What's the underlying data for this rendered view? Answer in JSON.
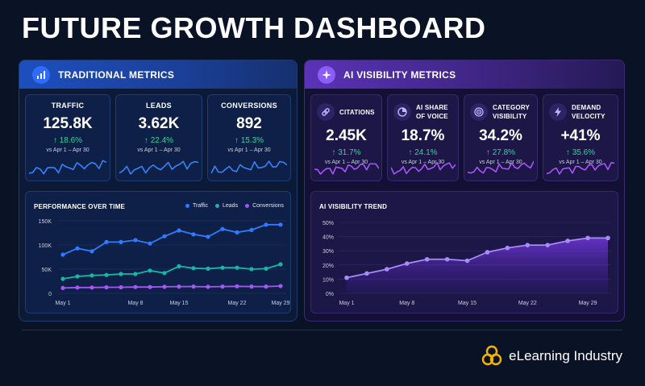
{
  "header": {
    "title": "FUTURE GROWTH DASHBOARD"
  },
  "traditional": {
    "title": "TRADITIONAL METRICS",
    "icon": "bar-chart-icon",
    "cards": [
      {
        "label": "TRAFFIC",
        "value": "125.8K",
        "delta": "↑ 18.6%",
        "period": "vs Apr 1 – Apr 30"
      },
      {
        "label": "LEADS",
        "value": "3.62K",
        "delta": "↑ 22.4%",
        "period": "vs Apr 1 – Apr 30"
      },
      {
        "label": "CONVERSIONS",
        "value": "892",
        "delta": "↑ 15.3%",
        "period": "vs Apr 1 – Apr 30"
      }
    ],
    "chart": {
      "title": "PERFORMANCE OVER TIME",
      "legend": [
        "Traffic",
        "Leads",
        "Conversions"
      ]
    }
  },
  "ai": {
    "title": "AI VISIBILITY METRICS",
    "icon": "sparkle-icon",
    "cards": [
      {
        "label_line1": "CITATIONS",
        "label_line2": "",
        "value": "2.45K",
        "delta": "↑ 31.7%",
        "period": "vs Apr 1 – Apr 30",
        "icon": "link-icon"
      },
      {
        "label_line1": "AI SHARE",
        "label_line2": "OF VOICE",
        "value": "18.7%",
        "delta": "↑ 24.1%",
        "period": "vs Apr 1 – Apr 30",
        "icon": "pie-icon"
      },
      {
        "label_line1": "CATEGORY",
        "label_line2": "VISIBILITY",
        "value": "34.2%",
        "delta": "↑ 27.8%",
        "period": "vs Apr 1 – Apr 30",
        "icon": "target-icon"
      },
      {
        "label_line1": "DEMAND",
        "label_line2": "VELOCITY",
        "value": "+41%",
        "delta": "↑ 35.6%",
        "period": "vs Apr 1 – Apr 30",
        "icon": "bolt-icon"
      }
    ],
    "chart": {
      "title": "AI VISIBILITY TREND"
    }
  },
  "brand": {
    "name": "eLearning Industry",
    "icon": "brand-logo-icon"
  },
  "colors": {
    "traffic": "#2f7bff",
    "leads": "#14b8a6",
    "conversions": "#a855f7",
    "ai_line": "#a78bfa",
    "positive": "#34d399",
    "spark_trad": "#3b82f6",
    "spark_ai": "#a855f7"
  },
  "chart_data": [
    {
      "type": "line",
      "x": [
        "May 1",
        "",
        "",
        "",
        "",
        "May 8",
        "",
        "",
        "May 15",
        "",
        "",
        "",
        "May 22",
        "",
        "",
        "May 29"
      ],
      "xticks": [
        "May 1",
        "May 8",
        "May 15",
        "May 22",
        "May 29"
      ],
      "yticks": [
        "0",
        "50K",
        "100K",
        "150K"
      ],
      "ylim": [
        0,
        150000
      ],
      "series": [
        {
          "name": "Traffic",
          "values": [
            80000,
            93000,
            87000,
            106000,
            106000,
            110000,
            103000,
            118000,
            130000,
            122000,
            117000,
            133000,
            126000,
            131000,
            142000,
            142000
          ]
        },
        {
          "name": "Leads",
          "values": [
            30000,
            35000,
            37000,
            38000,
            40000,
            40000,
            47000,
            42000,
            56000,
            52000,
            51000,
            53000,
            53000,
            50000,
            51000,
            60000
          ]
        },
        {
          "name": "Conversions",
          "values": [
            11000,
            12000,
            12000,
            12500,
            12500,
            13000,
            13000,
            13500,
            14000,
            14000,
            13500,
            14000,
            14500,
            14000,
            14000,
            15000
          ]
        }
      ]
    },
    {
      "type": "area",
      "x": [
        "May 1",
        "",
        "",
        "May 8",
        "",
        "",
        "May 15",
        "",
        "",
        "May 22",
        "",
        "",
        "May 29",
        ""
      ],
      "xticks": [
        "May 1",
        "May 8",
        "May 15",
        "May 22",
        "May 29"
      ],
      "yticks": [
        "0%",
        "10%",
        "20%",
        "30%",
        "40%",
        "50%"
      ],
      "ylim": [
        0,
        50
      ],
      "series": [
        {
          "name": "",
          "values": [
            11,
            14,
            17,
            21,
            24,
            24,
            23,
            29,
            32,
            34,
            34,
            37,
            39,
            39
          ]
        }
      ]
    }
  ]
}
